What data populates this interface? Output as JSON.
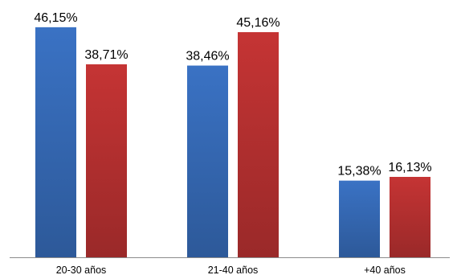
{
  "chart_data": {
    "type": "bar",
    "categories": [
      "20-30 años",
      "21-40 años",
      "+40 años"
    ],
    "series": [
      {
        "values": [
          46.15,
          38.46,
          15.38
        ],
        "color": "#3a72c4"
      },
      {
        "values": [
          38.71,
          45.16,
          16.13
        ],
        "color": "#c53434"
      }
    ],
    "data_labels": [
      [
        "46,15%",
        "38,46%",
        "15,38%"
      ],
      [
        "38,71%",
        "45,16%",
        "16,13%"
      ]
    ],
    "ylim": [
      0,
      50
    ],
    "grid": false,
    "legend": "none",
    "title": "",
    "xlabel": "",
    "ylabel": ""
  }
}
